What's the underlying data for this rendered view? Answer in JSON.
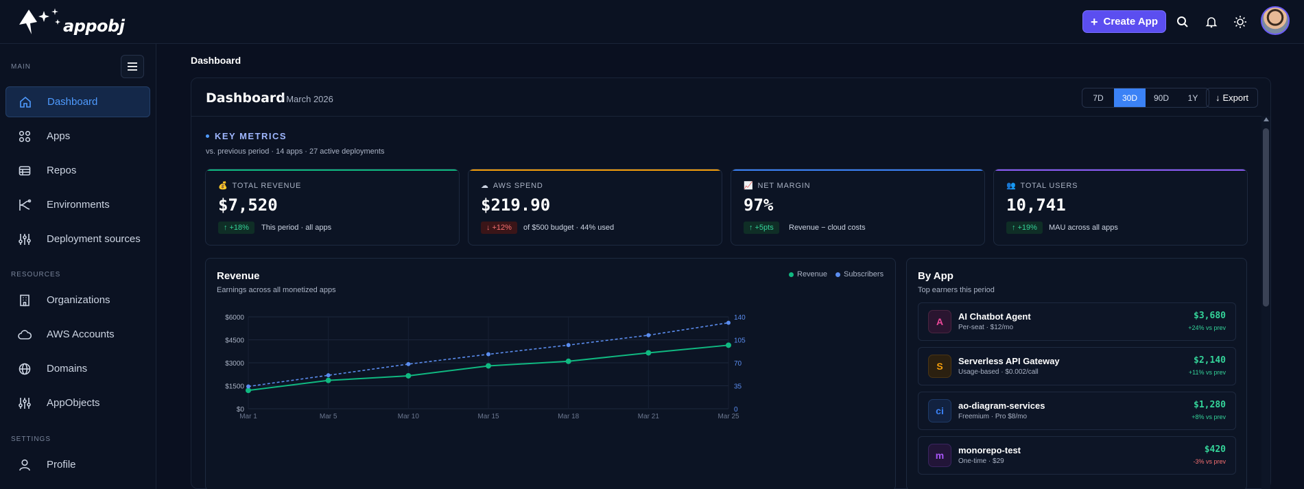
{
  "app": {
    "logo_text": "appobj"
  },
  "topbar": {
    "create_label": "Create App"
  },
  "sidebar": {
    "main_label": "MAIN",
    "resources_label": "RESOURCES",
    "settings_label": "SETTINGS",
    "main_items": [
      {
        "label": "Dashboard",
        "icon": "home-icon",
        "active": true
      },
      {
        "label": "Apps",
        "icon": "apps-grid-icon"
      },
      {
        "label": "Repos",
        "icon": "repo-icon"
      },
      {
        "label": "Environments",
        "icon": "environments-icon"
      },
      {
        "label": "Deployment sources",
        "icon": "sliders-icon"
      }
    ],
    "resource_items": [
      {
        "label": "Organizations",
        "icon": "building-icon"
      },
      {
        "label": "AWS Accounts",
        "icon": "cloud-icon"
      },
      {
        "label": "Domains",
        "icon": "globe-icon"
      },
      {
        "label": "AppObjects",
        "icon": "sliders-icon"
      }
    ],
    "settings_items": [
      {
        "label": "Profile",
        "icon": "user-icon"
      }
    ]
  },
  "breadcrumb": "Dashboard",
  "header": {
    "title": "Dashboard",
    "subtitle": "/ March 2026",
    "ranges": [
      "7D",
      "30D",
      "90D",
      "1Y"
    ],
    "active_range": "30D",
    "export_label": "Export"
  },
  "key_metrics": {
    "title": "KEY METRICS",
    "subtitle": "vs. previous period · 14 apps · 27 active deployments",
    "cards": [
      {
        "label": "TOTAL REVENUE",
        "value": "$7,520",
        "delta": "+18%",
        "direction": "up",
        "note": "This period · all apps",
        "accent": "#10b981"
      },
      {
        "label": "AWS SPEND",
        "value": "$219.90",
        "delta": "+12%",
        "direction": "down",
        "note": "of $500 budget · 44% used",
        "accent": "#f59e0b"
      },
      {
        "label": "NET MARGIN",
        "value": "97%",
        "delta": "+5pts",
        "direction": "up",
        "note": "Revenue − cloud costs",
        "accent": "#3b82f6"
      },
      {
        "label": "TOTAL USERS",
        "value": "10,741",
        "delta": "+19%",
        "direction": "up",
        "note": "MAU across all apps",
        "accent": "#8b5cf6"
      }
    ]
  },
  "revenue_card": {
    "title": "Revenue",
    "subtitle": "Earnings across all monetized apps",
    "legend": [
      "Revenue",
      "Subscribers"
    ]
  },
  "chart_data": {
    "type": "line",
    "x": [
      "Mar 1",
      "Mar 5",
      "Mar 10",
      "Mar 15",
      "Mar 18",
      "Mar 21",
      "Mar 25"
    ],
    "series": [
      {
        "name": "Revenue",
        "axis": "left",
        "color": "#10b981",
        "style": "solid",
        "values": [
          1200,
          1850,
          2150,
          2800,
          3100,
          3650,
          4150
        ]
      },
      {
        "name": "Subscribers",
        "axis": "right",
        "color": "#5b8def",
        "style": "dashed",
        "values": [
          34,
          51,
          68,
          83,
          97,
          112,
          131
        ]
      }
    ],
    "y_left": {
      "ticks": [
        "$0",
        "$1500",
        "$3000",
        "$4500",
        "$6000"
      ],
      "range": [
        0,
        6000
      ]
    },
    "y_right": {
      "ticks": [
        "0",
        "35",
        "70",
        "105",
        "140"
      ],
      "range": [
        0,
        140
      ]
    },
    "grid": true,
    "legend_position": "top-right"
  },
  "by_app": {
    "title": "By App",
    "subtitle": "Top earners this period",
    "apps": [
      {
        "name": "AI Chatbot Agent",
        "desc": "Per-seat · $12/mo",
        "amount": "$3,680",
        "change": "+24% vs prev",
        "negative": false,
        "glyph": "A",
        "color": "#ec4899",
        "bg": "#2a1530"
      },
      {
        "name": "Serverless API Gateway",
        "desc": "Usage-based · $0.002/call",
        "amount": "$2,140",
        "change": "+11% vs prev",
        "negative": false,
        "glyph": "S",
        "color": "#f59e0b",
        "bg": "#2b2010"
      },
      {
        "name": "ao-diagram-services",
        "desc": "Freemium · Pro $8/mo",
        "amount": "$1,280",
        "change": "+8% vs prev",
        "negative": false,
        "glyph": "ci",
        "color": "#3b82f6",
        "bg": "#122240"
      },
      {
        "name": "monorepo-test",
        "desc": "One-time · $29",
        "amount": "$420",
        "change": "-3% vs prev",
        "negative": true,
        "glyph": "m",
        "color": "#a855f7",
        "bg": "#221538"
      }
    ]
  }
}
